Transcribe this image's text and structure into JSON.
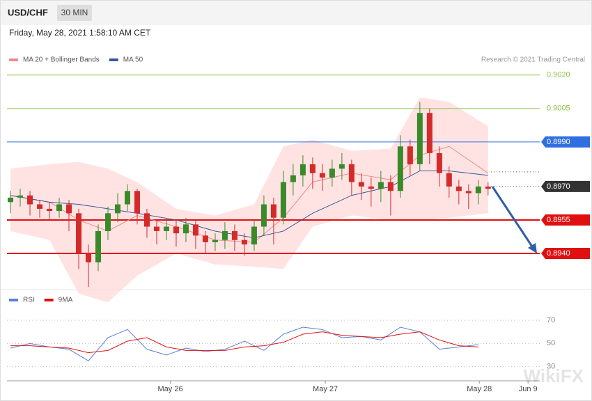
{
  "header": {
    "symbol": "USD/CHF",
    "interval": "30 MIN",
    "timestamp": "Friday, May 28, 2021 1:58:10 AM CET"
  },
  "chart_data": [
    {
      "type": "candlestick",
      "credit": "Research © 2021 Trading Central",
      "watermark": "WikiFX",
      "up_color": "#3a8a2a",
      "down_color": "#d42a2a",
      "open": [
        0.8963,
        0.8965,
        0.8966,
        0.8962,
        0.896,
        0.8959,
        0.8962,
        0.8958,
        0.894,
        0.8936,
        0.895,
        0.8958,
        0.8962,
        0.8968,
        0.8958,
        0.8952,
        0.895,
        0.8952,
        0.8949,
        0.8953,
        0.8948,
        0.8945,
        0.8946,
        0.895,
        0.8946,
        0.8944,
        0.8952,
        0.8962,
        0.8956,
        0.8972,
        0.8975,
        0.898,
        0.8976,
        0.8974,
        0.8978,
        0.898,
        0.8972,
        0.897,
        0.8969,
        0.8972,
        0.8968,
        0.8988,
        0.898,
        0.9003,
        0.8985,
        0.8976,
        0.897,
        0.8968,
        0.8967,
        0.897
      ],
      "high": [
        0.8968,
        0.8969,
        0.8968,
        0.8964,
        0.8963,
        0.8965,
        0.8964,
        0.896,
        0.8944,
        0.8953,
        0.8961,
        0.8967,
        0.8971,
        0.8969,
        0.896,
        0.8955,
        0.8956,
        0.8955,
        0.8956,
        0.8955,
        0.895,
        0.8949,
        0.8954,
        0.8953,
        0.8949,
        0.8955,
        0.8966,
        0.8965,
        0.8977,
        0.898,
        0.8984,
        0.8983,
        0.898,
        0.8982,
        0.8985,
        0.8982,
        0.8976,
        0.8974,
        0.8977,
        0.8975,
        0.8993,
        0.8991,
        0.9008,
        0.9005,
        0.8988,
        0.8979,
        0.8973,
        0.8971,
        0.8973,
        0.8972
      ],
      "low": [
        0.8958,
        0.8961,
        0.8957,
        0.8956,
        0.8955,
        0.8956,
        0.895,
        0.8933,
        0.8925,
        0.8932,
        0.8946,
        0.8954,
        0.8959,
        0.8953,
        0.8947,
        0.8944,
        0.8946,
        0.8943,
        0.8945,
        0.8942,
        0.894,
        0.8941,
        0.8942,
        0.8941,
        0.8939,
        0.8941,
        0.8948,
        0.8944,
        0.8953,
        0.8966,
        0.897,
        0.8969,
        0.8968,
        0.897,
        0.8973,
        0.8966,
        0.8964,
        0.8961,
        0.8963,
        0.8957,
        0.8965,
        0.8975,
        0.8977,
        0.898,
        0.897,
        0.8965,
        0.8962,
        0.896,
        0.8962,
        0.8966
      ],
      "close": [
        0.8965,
        0.8966,
        0.8962,
        0.896,
        0.8959,
        0.8962,
        0.8958,
        0.894,
        0.8936,
        0.895,
        0.8958,
        0.8962,
        0.8968,
        0.8958,
        0.8952,
        0.895,
        0.8952,
        0.8949,
        0.8953,
        0.8948,
        0.8945,
        0.8946,
        0.895,
        0.8946,
        0.8944,
        0.8952,
        0.8962,
        0.8956,
        0.8972,
        0.8975,
        0.898,
        0.8976,
        0.8974,
        0.8978,
        0.898,
        0.8972,
        0.897,
        0.8969,
        0.8972,
        0.8968,
        0.8988,
        0.898,
        0.9003,
        0.8985,
        0.8976,
        0.897,
        0.8968,
        0.8967,
        0.897,
        0.8969
      ],
      "series": [
        {
          "name": "MA 20 + Bollinger Bands",
          "color": "#f08a8a",
          "band_color": "#ffdcdc",
          "x": [
            0,
            4,
            7,
            10,
            13,
            17,
            21,
            25,
            28,
            31,
            35,
            39,
            42,
            45,
            49
          ],
          "values": [
            0.8966,
            0.8963,
            0.8955,
            0.895,
            0.8957,
            0.8952,
            0.8946,
            0.8945,
            0.8956,
            0.8972,
            0.8976,
            0.8973,
            0.8984,
            0.8988,
            0.8976
          ],
          "upper": [
            0.8978,
            0.898,
            0.8981,
            0.8978,
            0.8972,
            0.896,
            0.8957,
            0.8962,
            0.8988,
            0.8991,
            0.8986,
            0.8987,
            0.901,
            0.9008,
            0.8997
          ],
          "lower": [
            0.895,
            0.8946,
            0.8922,
            0.8918,
            0.893,
            0.894,
            0.8935,
            0.8934,
            0.8933,
            0.8952,
            0.8957,
            0.8955,
            0.8955,
            0.8956,
            0.8958
          ]
        },
        {
          "name": "MA 50",
          "color": "#35589a",
          "x": [
            0,
            4,
            7,
            10,
            13,
            17,
            21,
            25,
            28,
            31,
            35,
            39,
            42,
            45,
            49
          ],
          "values": [
            0.8966,
            0.8963,
            0.8962,
            0.896,
            0.8958,
            0.8955,
            0.895,
            0.8947,
            0.895,
            0.8958,
            0.8966,
            0.897,
            0.8977,
            0.8977,
            0.8975
          ]
        }
      ],
      "levels": [
        {
          "value": 0.902,
          "label": "0.9020",
          "color": "#8bc34a",
          "style": "text"
        },
        {
          "value": 0.9005,
          "label": "0.9005",
          "color": "#8bc34a",
          "style": "text"
        },
        {
          "value": 0.899,
          "label": "0.8990",
          "color": "#2f6fe0",
          "style": "box"
        },
        {
          "value": 0.897,
          "label": "0.8970",
          "color": "#333333",
          "style": "current"
        },
        {
          "value": 0.8955,
          "label": "0.8955",
          "color": "#e01010",
          "style": "box"
        },
        {
          "value": 0.894,
          "label": "0.8940",
          "color": "#e01010",
          "style": "box"
        }
      ],
      "ylim": [
        0.8925,
        0.9024
      ],
      "xlim": [
        -0.36,
        54.3
      ],
      "xticks": [
        {
          "value": 16.4,
          "label": "May 26"
        },
        {
          "value": 32.3,
          "label": "May 27"
        },
        {
          "value": 48.1,
          "label": "May 28"
        },
        {
          "value": 53.1,
          "label": "Jun 9"
        }
      ]
    },
    {
      "type": "line",
      "x": [
        0,
        2,
        4,
        6,
        8,
        10,
        12,
        14,
        16,
        18,
        20,
        22,
        24,
        26,
        28,
        30,
        32,
        34,
        36,
        38,
        40,
        42,
        44,
        46,
        48
      ],
      "series": [
        {
          "name": "RSI",
          "color": "#5b7fd6",
          "values": [
            46,
            50,
            47,
            45,
            35,
            55,
            62,
            45,
            40,
            46,
            43,
            45,
            52,
            44,
            58,
            64,
            62,
            55,
            56,
            53,
            64,
            60,
            45,
            47,
            49
          ]
        },
        {
          "name": "9MA",
          "color": "#e01010",
          "values": [
            48,
            48,
            47,
            46,
            42,
            44,
            52,
            55,
            47,
            44,
            44,
            44,
            47,
            48,
            51,
            58,
            60,
            57,
            56,
            55,
            58,
            60,
            53,
            48,
            47
          ]
        }
      ],
      "ylim": [
        22,
        79
      ],
      "yticks": [
        30,
        50,
        70
      ],
      "xlim": [
        -0.36,
        54.3
      ]
    }
  ]
}
